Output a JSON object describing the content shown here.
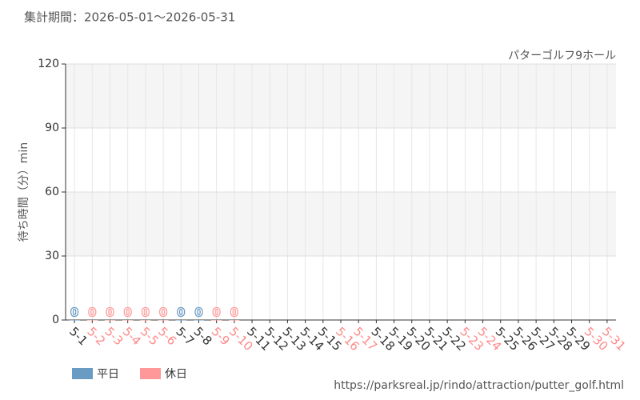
{
  "chart_data": {
    "type": "bar",
    "subtitle": "集計期間：2026-05-01～2026-05-31",
    "title": "パターゴルフ9ホール",
    "y_label": "待ち時間（分）min",
    "source": "https://parksreal.jp/rindo/attraction/putter_golf.html",
    "categories": [
      "5-1",
      "5-2",
      "5-3",
      "5-4",
      "5-5",
      "5-6",
      "5-7",
      "5-8",
      "5-9",
      "5-10",
      "5-11",
      "5-12",
      "5-13",
      "5-14",
      "5-15",
      "5-16",
      "5-17",
      "5-18",
      "5-19",
      "5-20",
      "5-21",
      "5-22",
      "5-23",
      "5-24",
      "5-25",
      "5-26",
      "5-27",
      "5-28",
      "5-29",
      "5-30",
      "5-31"
    ],
    "category_colors": [
      "#333333",
      "#ff8888",
      "#ff8888",
      "#ff8888",
      "#ff8888",
      "#ff8888",
      "#333333",
      "#333333",
      "#ff8888",
      "#ff8888",
      "#333333",
      "#333333",
      "#333333",
      "#333333",
      "#333333",
      "#ff8888",
      "#ff8888",
      "#333333",
      "#333333",
      "#333333",
      "#333333",
      "#333333",
      "#ff8888",
      "#ff8888",
      "#333333",
      "#333333",
      "#333333",
      "#333333",
      "#333333",
      "#ff8888",
      "#ff8888"
    ],
    "series": [
      {
        "name": "平日",
        "color": "#6a9bc3",
        "values": [
          0,
          null,
          null,
          null,
          null,
          null,
          0,
          0,
          null,
          null,
          null,
          null,
          null,
          null,
          null,
          null,
          null,
          null,
          null,
          null,
          null,
          null,
          null,
          null,
          null,
          null,
          null,
          null,
          null,
          null,
          null
        ]
      },
      {
        "name": "休日",
        "color": "#ff9999",
        "values": [
          null,
          0,
          0,
          0,
          0,
          0,
          null,
          null,
          0,
          0,
          null,
          null,
          null,
          null,
          null,
          null,
          null,
          null,
          null,
          null,
          null,
          null,
          null,
          null,
          null,
          null,
          null,
          null,
          null,
          null,
          null
        ]
      }
    ],
    "ylim": [
      0,
      120
    ],
    "yticks": [
      0,
      30,
      60,
      90,
      120
    ],
    "grid": true
  }
}
